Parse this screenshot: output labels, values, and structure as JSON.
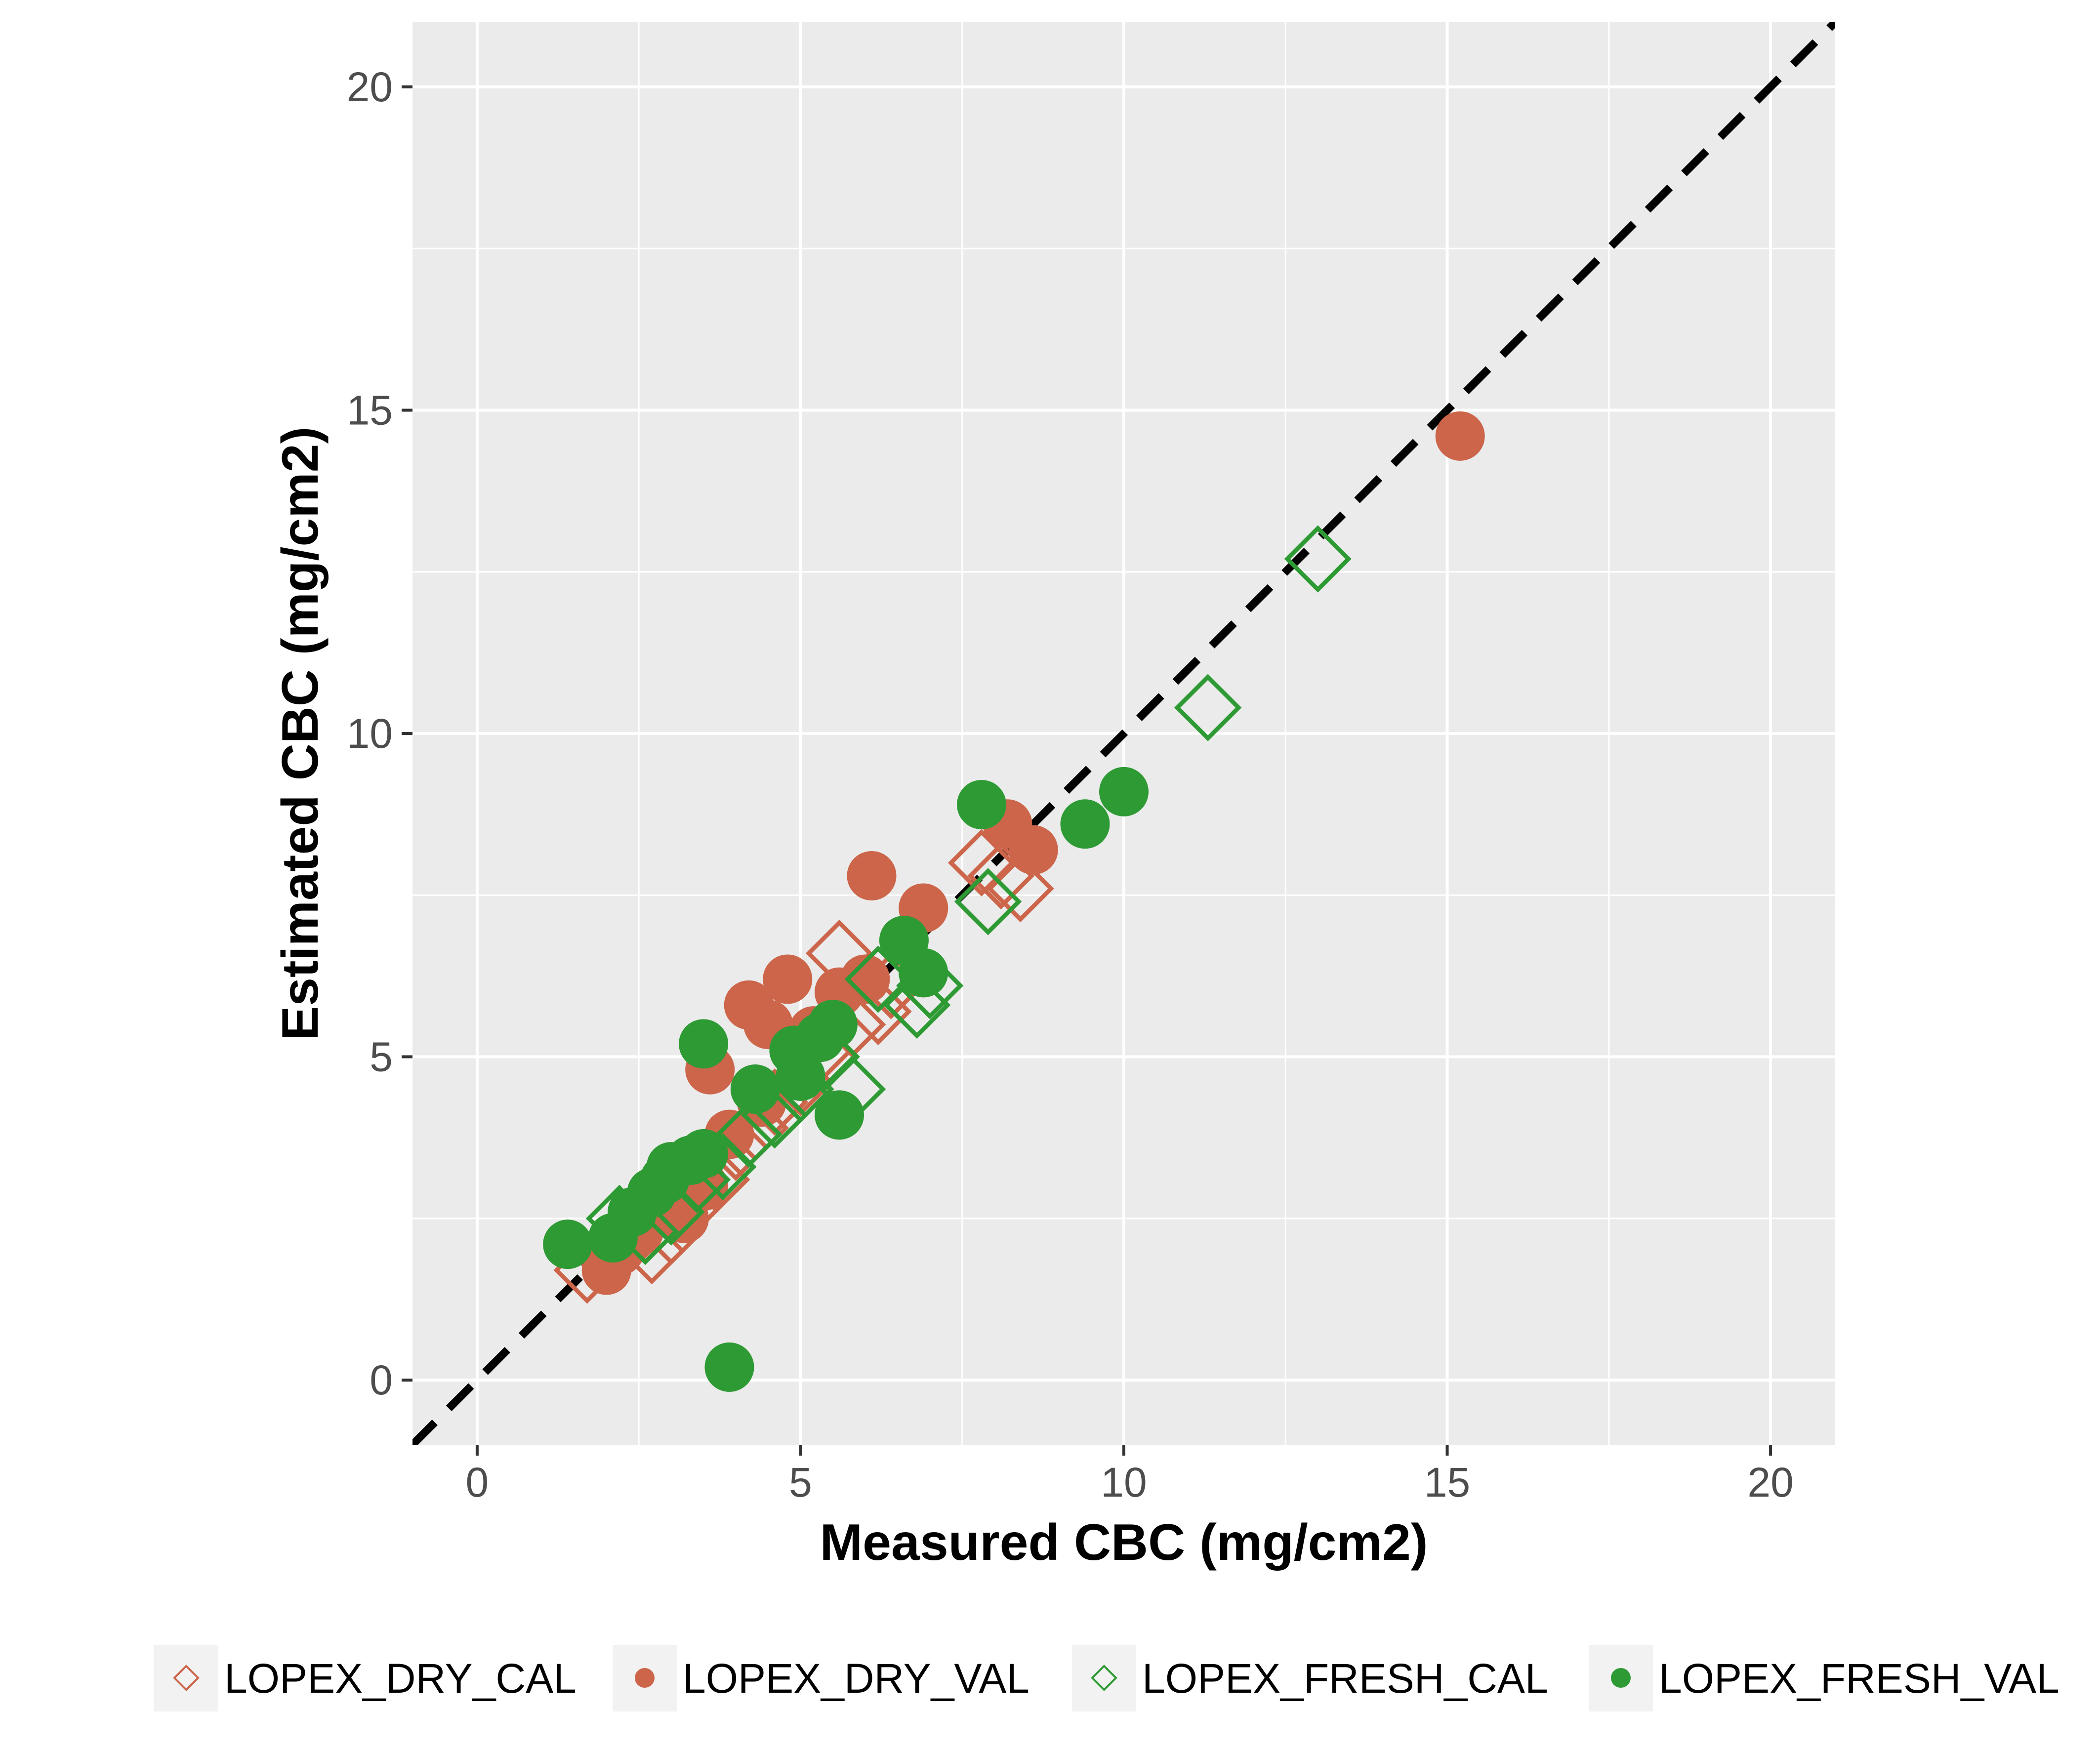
{
  "chart_data": {
    "type": "scatter",
    "xlabel": "Measured CBC (mg/cm2)",
    "ylabel": "Estimated CBC (mg/cm2)",
    "xlim": [
      -1,
      21
    ],
    "ylim": [
      -1,
      21
    ],
    "xticks": [
      "0",
      "5",
      "10",
      "15",
      "20"
    ],
    "yticks": [
      "0",
      "5",
      "10",
      "15",
      "20"
    ],
    "grid": true,
    "legend_position": "bottom",
    "reference_line": {
      "type": "1:1",
      "style": "dashed",
      "color": "#000000"
    },
    "colors": {
      "dry": "#CC654A",
      "fresh": "#2E9A34",
      "panel": "#EBEBEB",
      "grid": "#FFFFFF"
    },
    "series": [
      {
        "name": "LOPEX_DRY_CAL",
        "marker": "diamond-open",
        "color": "#CC654A",
        "points": [
          [
            1.7,
            1.7
          ],
          [
            2.0,
            1.9
          ],
          [
            2.3,
            2.1
          ],
          [
            2.7,
            2.0
          ],
          [
            3.0,
            2.3
          ],
          [
            3.3,
            2.7
          ],
          [
            3.7,
            3.1
          ],
          [
            4.0,
            3.6
          ],
          [
            4.3,
            3.9
          ],
          [
            4.6,
            4.3
          ],
          [
            5.0,
            4.6
          ],
          [
            5.3,
            5.1
          ],
          [
            5.6,
            6.6
          ],
          [
            5.8,
            5.5
          ],
          [
            6.2,
            5.7
          ],
          [
            6.4,
            6.1
          ],
          [
            7.8,
            8.0
          ],
          [
            8.1,
            7.8
          ],
          [
            8.4,
            7.6
          ]
        ]
      },
      {
        "name": "LOPEX_DRY_VAL",
        "marker": "circle",
        "color": "#CC654A",
        "points": [
          [
            2.0,
            1.7
          ],
          [
            2.2,
            2.0
          ],
          [
            2.5,
            2.3
          ],
          [
            2.9,
            2.6
          ],
          [
            3.2,
            2.5
          ],
          [
            3.5,
            3.0
          ],
          [
            3.6,
            4.8
          ],
          [
            3.9,
            3.8
          ],
          [
            4.2,
            5.8
          ],
          [
            4.4,
            4.3
          ],
          [
            4.5,
            5.5
          ],
          [
            4.8,
            6.2
          ],
          [
            4.9,
            5.2
          ],
          [
            5.2,
            5.4
          ],
          [
            5.6,
            6.0
          ],
          [
            6.0,
            6.2
          ],
          [
            6.1,
            7.8
          ],
          [
            6.9,
            7.3
          ],
          [
            8.2,
            8.6
          ],
          [
            8.6,
            8.2
          ],
          [
            15.2,
            14.6
          ]
        ]
      },
      {
        "name": "LOPEX_FRESH_CAL",
        "marker": "diamond-open",
        "color": "#2E9A34",
        "points": [
          [
            2.2,
            2.5
          ],
          [
            2.6,
            2.3
          ],
          [
            3.0,
            2.6
          ],
          [
            3.4,
            3.1
          ],
          [
            3.8,
            3.3
          ],
          [
            4.2,
            3.8
          ],
          [
            4.6,
            4.1
          ],
          [
            5.0,
            4.5
          ],
          [
            5.4,
            5.0
          ],
          [
            5.8,
            4.5
          ],
          [
            6.2,
            6.2
          ],
          [
            6.8,
            5.8
          ],
          [
            7.0,
            6.1
          ],
          [
            7.9,
            7.4
          ],
          [
            11.3,
            10.4
          ],
          [
            13.0,
            12.7
          ]
        ]
      },
      {
        "name": "LOPEX_FRESH_VAL",
        "marker": "circle",
        "color": "#2E9A34",
        "points": [
          [
            1.4,
            2.1
          ],
          [
            2.1,
            2.2
          ],
          [
            2.4,
            2.6
          ],
          [
            2.7,
            2.9
          ],
          [
            2.9,
            3.1
          ],
          [
            3.0,
            3.3
          ],
          [
            3.3,
            3.4
          ],
          [
            3.5,
            5.2
          ],
          [
            3.5,
            3.5
          ],
          [
            3.9,
            0.2
          ],
          [
            4.3,
            4.5
          ],
          [
            4.9,
            5.1
          ],
          [
            5.0,
            4.7
          ],
          [
            5.3,
            5.3
          ],
          [
            5.5,
            5.5
          ],
          [
            5.6,
            4.1
          ],
          [
            6.6,
            6.8
          ],
          [
            6.9,
            6.3
          ],
          [
            7.8,
            8.9
          ],
          [
            9.4,
            8.6
          ],
          [
            10.0,
            9.1
          ]
        ]
      }
    ]
  }
}
